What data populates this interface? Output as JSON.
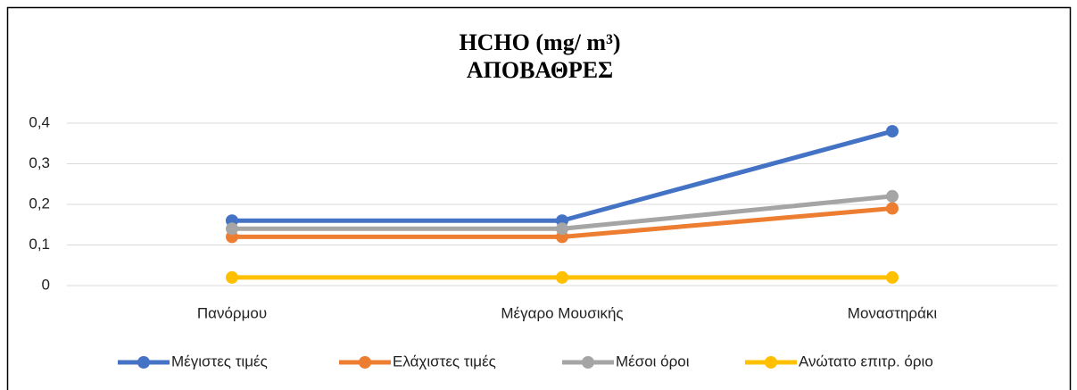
{
  "chart_data": {
    "type": "line",
    "title": [
      "HCHO (mg/ m³)",
      "ΑΠΟΒΑΘΡΕΣ"
    ],
    "categories": [
      "Πανόρμου",
      "Μέγαρο Μουσικής",
      "Μοναστηράκι"
    ],
    "series": [
      {
        "name": "Μέγιστες τιμές",
        "color": "#4472c4",
        "values": [
          0.16,
          0.16,
          0.38
        ]
      },
      {
        "name": "Ελάχιστες τιμές",
        "color": "#ed7d31",
        "values": [
          0.12,
          0.12,
          0.19
        ]
      },
      {
        "name": "Μέσοι όροι",
        "color": "#a5a5a5",
        "values": [
          0.14,
          0.14,
          0.22
        ]
      },
      {
        "name": "Ανώτατο επιτρ. όριο",
        "color": "#ffc000",
        "values": [
          0.02,
          0.02,
          0.02
        ]
      }
    ],
    "ylim": [
      0,
      0.4
    ],
    "yticks": [
      0,
      {
        "value": 0.1,
        "label": "0,1"
      },
      {
        "value": 0.2,
        "label": "0,2"
      },
      {
        "value": 0.3,
        "label": "0,3"
      },
      {
        "value": 0.4,
        "label": "0,4"
      }
    ],
    "grid": true,
    "legend": "bottom"
  }
}
